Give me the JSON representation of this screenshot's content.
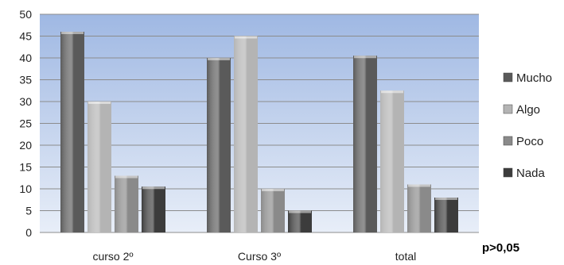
{
  "chart_data": {
    "type": "bar",
    "categories": [
      "curso 2º",
      "Curso 3º",
      "total"
    ],
    "series": [
      {
        "name": "Mucho",
        "values": [
          46,
          40,
          40.5
        ],
        "color": "#5a5a5a"
      },
      {
        "name": "Algo",
        "values": [
          30,
          45,
          32.5
        ],
        "color": "#b4b4b4"
      },
      {
        "name": "Poco",
        "values": [
          13,
          10,
          11
        ],
        "color": "#8a8a8a"
      },
      {
        "name": "Nada",
        "values": [
          10.5,
          5,
          8
        ],
        "color": "#3c3c3c"
      }
    ],
    "ylim": [
      0,
      50
    ],
    "yticks": [
      "0",
      "5",
      "10",
      "15",
      "20",
      "25",
      "30",
      "35",
      "40",
      "45",
      "50"
    ],
    "grid": true,
    "legend_position": "right",
    "annotation": "p>0,05",
    "plot_background": [
      "#e8eef8",
      "#9fb8e3"
    ]
  }
}
